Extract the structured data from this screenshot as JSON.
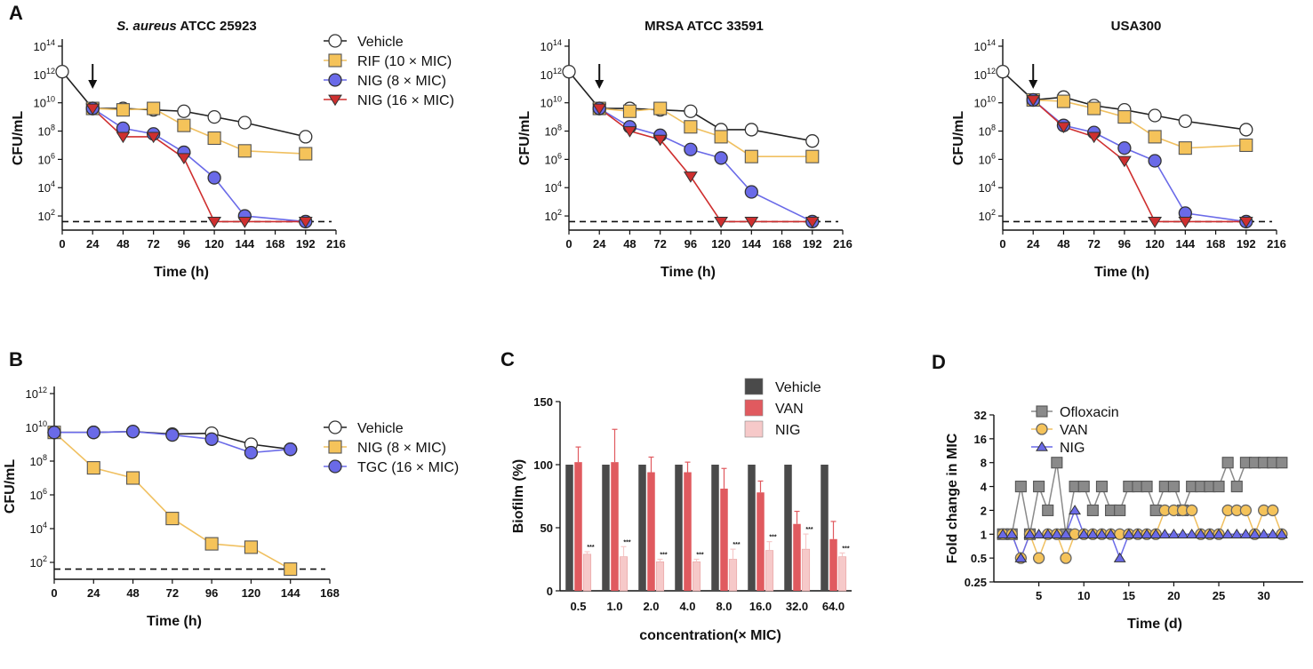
{
  "colors": {
    "vehicle": "#ffffff",
    "rif": "#f5c35a",
    "nig_blue": "#6a6ae8",
    "nig_red": "#cf2f2f",
    "nig_yellow": "#f5c35a",
    "tgc": "#6a6ae8",
    "bar_vehicle": "#4a4a4a",
    "bar_van": "#e05a5f",
    "bar_nig": "#f6c9c9",
    "ofloxacin": "#8a8a8a",
    "van_line": "#f5c35a",
    "nig_tri": "#6a6ae8",
    "rif_line": "#f0c060"
  },
  "chart_data": [
    {
      "panel": "A",
      "type": "line",
      "title": "S. aureus ATCC 25923",
      "title_italic": "S. aureus",
      "title_rest": " ATCC 25923",
      "xlabel": "Time (h)",
      "ylabel": "CFU/mL",
      "xlim": [
        0,
        216
      ],
      "xticks": [
        0,
        24,
        48,
        72,
        96,
        120,
        144,
        168,
        192,
        216
      ],
      "yexp": [
        2,
        4,
        6,
        8,
        10,
        12,
        14
      ],
      "ylim_exp": [
        1,
        14
      ],
      "detection_limit_exp": 1.6,
      "arrow_x": 24,
      "legend": [
        "Vehicle",
        "RIF (10 × MIC)",
        "NIG (8 × MIC)",
        "NIG (16 × MIC)"
      ],
      "series": [
        {
          "name": "Vehicle",
          "marker": "circle",
          "color": "#ffffff",
          "line": "#222222",
          "x": [
            0,
            24,
            48,
            72,
            96,
            120,
            144,
            192
          ],
          "y": [
            12.2,
            9.6,
            9.6,
            9.5,
            9.4,
            9.0,
            8.6,
            7.6
          ]
        },
        {
          "name": "RIF (10 × MIC)",
          "marker": "square",
          "color": "#f5c35a",
          "line": "#f0c060",
          "x": [
            24,
            48,
            72,
            96,
            120,
            144,
            192
          ],
          "y": [
            9.6,
            9.5,
            9.6,
            8.4,
            7.5,
            6.6,
            6.4
          ]
        },
        {
          "name": "NIG (8 × MIC)",
          "marker": "circle",
          "color": "#6a6ae8",
          "line": "#6a6ae8",
          "x": [
            24,
            48,
            72,
            96,
            120,
            144,
            192
          ],
          "y": [
            9.6,
            8.2,
            7.8,
            6.5,
            4.7,
            2.0,
            1.6
          ]
        },
        {
          "name": "NIG (16 × MIC)",
          "marker": "triangle",
          "color": "#cf2f2f",
          "line": "#cf2f2f",
          "x": [
            24,
            48,
            72,
            96,
            120,
            144,
            192
          ],
          "y": [
            9.6,
            7.6,
            7.6,
            6.1,
            1.6,
            1.6,
            1.6
          ]
        }
      ]
    },
    {
      "panel": "",
      "type": "line",
      "title": "MRSA ATCC 33591",
      "xlabel": "Time (h)",
      "ylabel": "CFU/mL",
      "xlim": [
        0,
        216
      ],
      "xticks": [
        0,
        24,
        48,
        72,
        96,
        120,
        144,
        168,
        192,
        216
      ],
      "yexp": [
        2,
        4,
        6,
        8,
        10,
        12,
        14
      ],
      "ylim_exp": [
        1,
        14
      ],
      "detection_limit_exp": 1.6,
      "arrow_x": 24,
      "series": [
        {
          "name": "Vehicle",
          "marker": "circle",
          "color": "#ffffff",
          "line": "#222222",
          "x": [
            0,
            24,
            48,
            72,
            96,
            120,
            144,
            192
          ],
          "y": [
            12.2,
            9.6,
            9.6,
            9.5,
            9.4,
            8.1,
            8.1,
            7.3
          ]
        },
        {
          "name": "RIF (10 × MIC)",
          "marker": "square",
          "color": "#f5c35a",
          "line": "#f0c060",
          "x": [
            24,
            48,
            72,
            96,
            120,
            144,
            192
          ],
          "y": [
            9.6,
            9.4,
            9.6,
            8.3,
            7.6,
            6.2,
            6.2
          ]
        },
        {
          "name": "NIG (8 × MIC)",
          "marker": "circle",
          "color": "#6a6ae8",
          "line": "#6a6ae8",
          "x": [
            24,
            48,
            72,
            96,
            120,
            144,
            192
          ],
          "y": [
            9.6,
            8.3,
            7.7,
            6.7,
            6.1,
            3.7,
            1.6
          ]
        },
        {
          "name": "NIG (16 × MIC)",
          "marker": "triangle",
          "color": "#cf2f2f",
          "line": "#cf2f2f",
          "x": [
            24,
            48,
            72,
            96,
            120,
            144,
            192
          ],
          "y": [
            9.6,
            8.0,
            7.4,
            4.8,
            1.6,
            1.6,
            1.6
          ]
        }
      ]
    },
    {
      "panel": "",
      "type": "line",
      "title": "USA300",
      "xlabel": "Time (h)",
      "ylabel": "CFU/mL",
      "xlim": [
        0,
        216
      ],
      "xticks": [
        0,
        24,
        48,
        72,
        96,
        120,
        144,
        168,
        192,
        216
      ],
      "yexp": [
        2,
        4,
        6,
        8,
        10,
        12,
        14
      ],
      "ylim_exp": [
        1,
        14
      ],
      "detection_limit_exp": 1.6,
      "arrow_x": 24,
      "series": [
        {
          "name": "Vehicle",
          "marker": "circle",
          "color": "#ffffff",
          "line": "#222222",
          "x": [
            0,
            24,
            48,
            72,
            96,
            120,
            144,
            192
          ],
          "y": [
            12.2,
            10.2,
            10.4,
            9.8,
            9.5,
            9.1,
            8.7,
            8.1
          ]
        },
        {
          "name": "RIF (10 × MIC)",
          "marker": "square",
          "color": "#f5c35a",
          "line": "#f0c060",
          "x": [
            24,
            48,
            72,
            96,
            120,
            144,
            192
          ],
          "y": [
            10.2,
            10.1,
            9.6,
            9.0,
            7.6,
            6.8,
            7.0
          ]
        },
        {
          "name": "NIG (8 × MIC)",
          "marker": "circle",
          "color": "#6a6ae8",
          "line": "#6a6ae8",
          "x": [
            24,
            48,
            72,
            96,
            120,
            144,
            192
          ],
          "y": [
            10.2,
            8.4,
            7.9,
            6.8,
            5.9,
            2.2,
            1.6
          ]
        },
        {
          "name": "NIG (16 × MIC)",
          "marker": "triangle",
          "color": "#cf2f2f",
          "line": "#cf2f2f",
          "x": [
            24,
            48,
            72,
            96,
            120,
            144,
            192
          ],
          "y": [
            10.2,
            8.3,
            7.6,
            5.9,
            1.6,
            1.6,
            1.6
          ]
        }
      ]
    },
    {
      "panel": "B",
      "type": "line",
      "title": "",
      "xlabel": "Time (h)",
      "ylabel": "CFU/mL",
      "xlim": [
        0,
        168
      ],
      "xticks": [
        0,
        24,
        48,
        72,
        96,
        120,
        144,
        168
      ],
      "yexp": [
        2,
        4,
        6,
        8,
        10,
        12
      ],
      "ylim_exp": [
        1,
        12
      ],
      "detection_limit_exp": 1.6,
      "legend": [
        "Vehicle",
        "NIG (8 × MIC)",
        "TGC (16 × MIC)"
      ],
      "series": [
        {
          "name": "Vehicle",
          "marker": "circle",
          "color": "#ffffff",
          "line": "#222222",
          "x": [
            0,
            24,
            48,
            72,
            96,
            120,
            144
          ],
          "y": [
            9.7,
            9.7,
            9.75,
            9.6,
            9.65,
            9.0,
            8.7
          ]
        },
        {
          "name": "NIG (8 × MIC)",
          "marker": "square",
          "color": "#f5c35a",
          "line": "#f0c060",
          "x": [
            0,
            24,
            48,
            72,
            96,
            120,
            144
          ],
          "y": [
            9.7,
            7.6,
            7.0,
            4.6,
            3.1,
            2.9,
            1.6
          ]
        },
        {
          "name": "TGC (16 × MIC)",
          "marker": "circle",
          "color": "#6a6ae8",
          "line": "#6a6ae8",
          "x": [
            0,
            24,
            48,
            72,
            96,
            120,
            144
          ],
          "y": [
            9.7,
            9.7,
            9.75,
            9.55,
            9.3,
            8.5,
            8.7
          ]
        }
      ]
    },
    {
      "panel": "C",
      "type": "bar",
      "title": "",
      "xlabel": "concentration(× MIC)",
      "ylabel": "Biofilm (%)",
      "ylim": [
        0,
        150
      ],
      "yticks": [
        0,
        50,
        100,
        150
      ],
      "categories": [
        "0.5",
        "1.0",
        "2.0",
        "4.0",
        "8.0",
        "16.0",
        "32.0",
        "64.0"
      ],
      "legend": [
        "Vehicle",
        "VAN",
        "NIG"
      ],
      "sig_label": "***",
      "series": [
        {
          "name": "Vehicle",
          "color": "#4a4a4a",
          "values": [
            100,
            100,
            100,
            100,
            100,
            100,
            100,
            100
          ],
          "err": [
            0,
            0,
            0,
            0,
            0,
            0,
            0,
            0
          ]
        },
        {
          "name": "VAN",
          "color": "#e05a5f",
          "values": [
            102,
            102,
            94,
            94,
            81,
            78,
            53,
            41
          ],
          "err": [
            12,
            26,
            12,
            8,
            16,
            9,
            10,
            14
          ]
        },
        {
          "name": "NIG",
          "color": "#f6c9c9",
          "values": [
            29,
            27,
            23,
            23,
            25,
            32,
            33,
            27
          ],
          "err": [
            2,
            8,
            2,
            2,
            8,
            7,
            12,
            3
          ]
        }
      ]
    },
    {
      "panel": "D",
      "type": "line",
      "title": "",
      "xlabel": "Time (d)",
      "ylabel": "Fold change in MIC",
      "xticks": [
        5,
        10,
        15,
        20,
        25,
        30
      ],
      "xlim": [
        0,
        33
      ],
      "ytick_labels": [
        "0.25",
        "0.5",
        "1",
        "2",
        "4",
        "8",
        "16",
        "32"
      ],
      "legend": [
        "Ofloxacin",
        "VAN",
        "NIG"
      ],
      "series": [
        {
          "name": "Ofloxacin",
          "marker": "square",
          "color": "#8a8a8a",
          "line": "#8a8a8a",
          "x": [
            1,
            2,
            3,
            4,
            5,
            6,
            7,
            8,
            9,
            10,
            11,
            12,
            13,
            14,
            15,
            16,
            17,
            18,
            19,
            20,
            21,
            22,
            23,
            24,
            25,
            26,
            27,
            28,
            29,
            30,
            31,
            32
          ],
          "y": [
            1,
            1,
            4,
            1,
            4,
            2,
            8,
            1,
            4,
            4,
            2,
            4,
            2,
            2,
            4,
            4,
            4,
            2,
            4,
            4,
            2,
            4,
            4,
            4,
            4,
            8,
            4,
            8,
            8,
            8,
            8,
            8
          ]
        },
        {
          "name": "VAN",
          "marker": "circle",
          "color": "#f5c35a",
          "line": "#f0c060",
          "x": [
            1,
            2,
            3,
            4,
            5,
            6,
            7,
            8,
            9,
            10,
            11,
            12,
            13,
            14,
            15,
            16,
            17,
            18,
            19,
            20,
            21,
            22,
            23,
            24,
            25,
            26,
            27,
            28,
            29,
            30,
            31,
            32
          ],
          "y": [
            1,
            1,
            0.5,
            1,
            0.5,
            1,
            1,
            0.5,
            1,
            1,
            1,
            1,
            1,
            1,
            1,
            1,
            1,
            1,
            2,
            2,
            2,
            2,
            1,
            1,
            1,
            2,
            2,
            2,
            1,
            2,
            2,
            1
          ]
        },
        {
          "name": "NIG",
          "marker": "triangle",
          "color": "#6a6ae8",
          "line": "#6a6ae8",
          "x": [
            1,
            2,
            3,
            4,
            5,
            6,
            7,
            8,
            9,
            10,
            11,
            12,
            13,
            14,
            15,
            16,
            17,
            18,
            19,
            20,
            21,
            22,
            23,
            24,
            25,
            26,
            27,
            28,
            29,
            30,
            31,
            32
          ],
          "y": [
            1,
            1,
            0.5,
            1,
            1,
            1,
            1,
            1,
            2,
            1,
            1,
            1,
            1,
            0.5,
            1,
            1,
            1,
            1,
            1,
            1,
            1,
            1,
            1,
            1,
            1,
            1,
            1,
            1,
            1,
            1,
            1,
            1
          ]
        }
      ]
    }
  ]
}
